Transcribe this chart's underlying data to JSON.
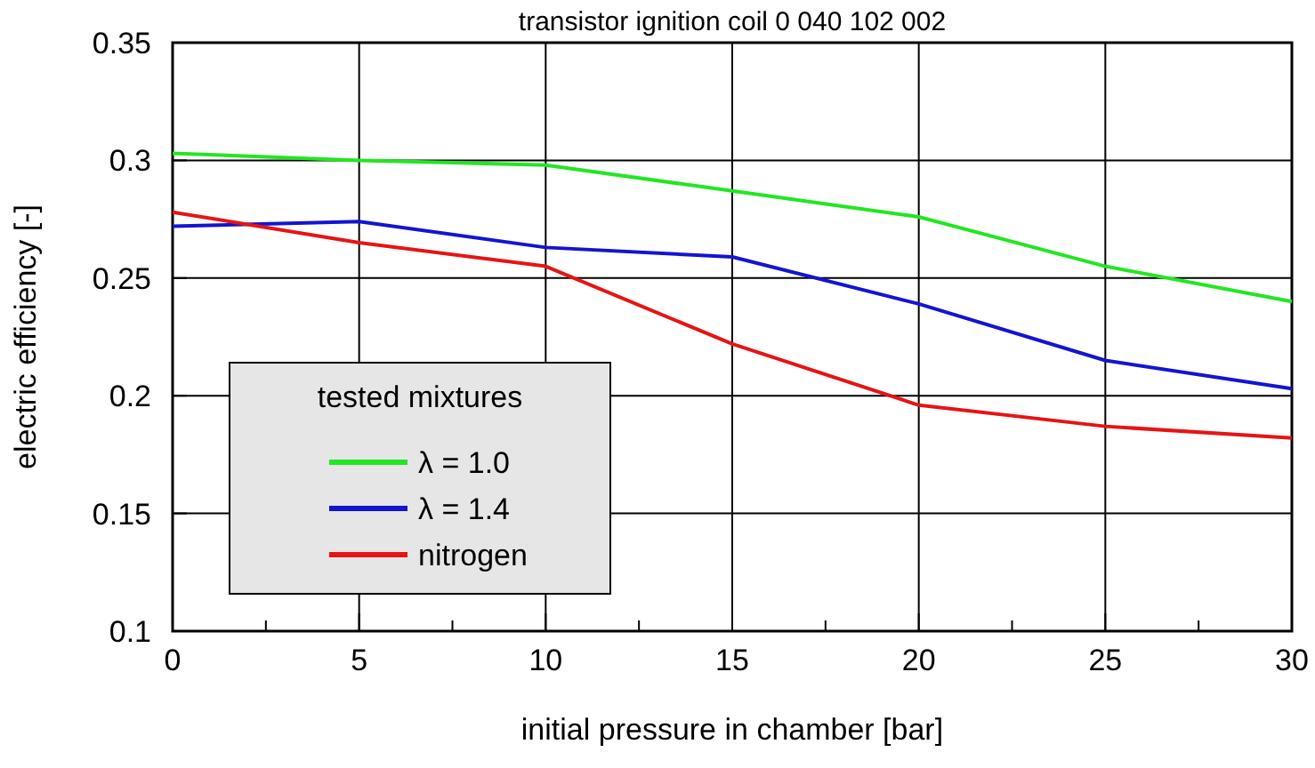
{
  "chart_data": {
    "type": "line",
    "title": "transistor ignition coil 0 040 102 002",
    "xlabel": "initial pressure in chamber [bar]",
    "ylabel": "electric efficiency [-]",
    "legend_title": "tested mixtures",
    "legend": "bottom left",
    "grid": true,
    "line_style": "solid",
    "marker": "none",
    "x": [
      0,
      5,
      10,
      15,
      20,
      25,
      30
    ],
    "xlim": [
      0,
      30
    ],
    "xticks": [
      0,
      {
        "value": 2.5,
        "label": null
      },
      5,
      {
        "value": 7.5,
        "label": null
      },
      10,
      {
        "value": 12.5,
        "label": null
      },
      15,
      {
        "value": 17.5,
        "label": null
      },
      20,
      {
        "value": 22.5,
        "label": null
      },
      25,
      {
        "value": 27.5,
        "label": null
      },
      30
    ],
    "ylim": [
      0.1,
      0.35
    ],
    "yticks": [
      0.1,
      0.15,
      0.2,
      0.25,
      0.3,
      0.35
    ],
    "series": [
      {
        "name": "λ = 1.0",
        "color": "#22e622",
        "values": [
          0.303,
          0.3,
          0.298,
          0.287,
          0.276,
          0.255,
          0.24
        ]
      },
      {
        "name": "λ = 1.4",
        "color": "#1414d2",
        "values": [
          0.272,
          0.274,
          0.263,
          0.259,
          0.239,
          0.215,
          0.203
        ]
      },
      {
        "name": "nitrogen",
        "color": "#e61414",
        "values": [
          0.278,
          0.265,
          0.255,
          0.222,
          0.196,
          0.187,
          0.182
        ]
      }
    ]
  }
}
